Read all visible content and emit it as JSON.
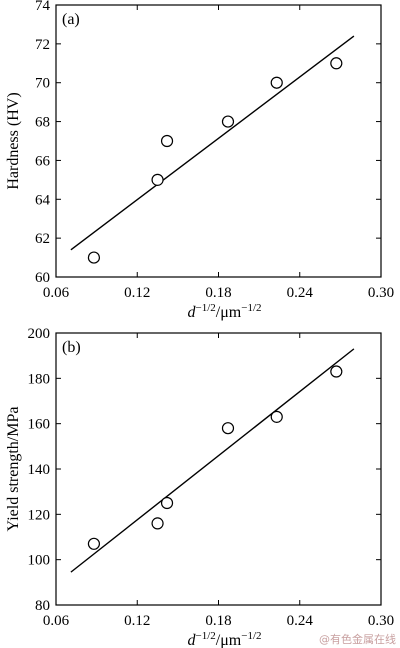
{
  "chart_data": [
    {
      "type": "scatter",
      "panel_label": "(a)",
      "ylabel": "Hardness (HV)",
      "xlabel_base": "d",
      "xlabel_exp1": "−1/2",
      "xlabel_unit": "/μm",
      "xlabel_exp2": "−1/2",
      "xlim": [
        0.06,
        0.3
      ],
      "ylim": [
        60,
        74
      ],
      "x_ticks": [
        0.06,
        0.12,
        0.18,
        0.24,
        0.3
      ],
      "x_tick_labels": [
        "0.06",
        "0.12",
        "0.18",
        "0.24",
        "0.30"
      ],
      "y_ticks": [
        60,
        62,
        64,
        66,
        68,
        70,
        72,
        74
      ],
      "y_tick_labels": [
        "60",
        "62",
        "64",
        "66",
        "68",
        "70",
        "72",
        "74"
      ],
      "points": [
        {
          "x": 0.088,
          "y": 61.0
        },
        {
          "x": 0.135,
          "y": 65.0
        },
        {
          "x": 0.142,
          "y": 67.0
        },
        {
          "x": 0.187,
          "y": 68.0
        },
        {
          "x": 0.223,
          "y": 70.0
        },
        {
          "x": 0.267,
          "y": 71.0
        }
      ],
      "fit_line": [
        {
          "x": 0.071,
          "y": 61.4
        },
        {
          "x": 0.28,
          "y": 72.4
        }
      ],
      "grid": false
    },
    {
      "type": "scatter",
      "panel_label": "(b)",
      "ylabel": "Yield strength/MPa",
      "xlabel_base": "d",
      "xlabel_exp1": "−1/2",
      "xlabel_unit": "/μm",
      "xlabel_exp2": "−1/2",
      "xlim": [
        0.06,
        0.3
      ],
      "ylim": [
        80,
        200
      ],
      "x_ticks": [
        0.06,
        0.12,
        0.18,
        0.24,
        0.3
      ],
      "x_tick_labels": [
        "0.06",
        "0.12",
        "0.18",
        "0.24",
        "0.30"
      ],
      "y_ticks": [
        80,
        100,
        120,
        140,
        160,
        180,
        200
      ],
      "y_tick_labels": [
        "80",
        "100",
        "120",
        "140",
        "160",
        "180",
        "200"
      ],
      "points": [
        {
          "x": 0.088,
          "y": 107
        },
        {
          "x": 0.135,
          "y": 116
        },
        {
          "x": 0.142,
          "y": 125
        },
        {
          "x": 0.187,
          "y": 158
        },
        {
          "x": 0.223,
          "y": 163
        },
        {
          "x": 0.267,
          "y": 183
        }
      ],
      "fit_line": [
        {
          "x": 0.071,
          "y": 94.5
        },
        {
          "x": 0.28,
          "y": 193
        }
      ],
      "grid": false
    }
  ],
  "watermark": "@有色金属在线"
}
